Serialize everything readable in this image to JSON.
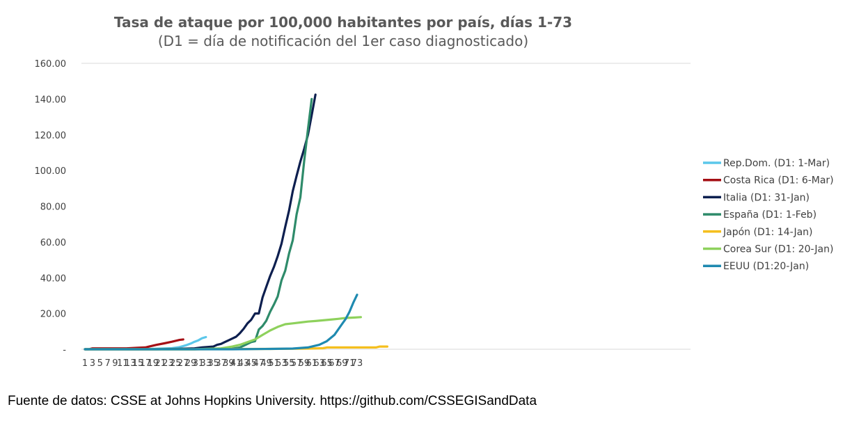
{
  "chart_data": {
    "type": "line",
    "title": "Tasa de ataque por 100,000 habitantes por país, días 1-73",
    "subtitle": "(D1 = día de notificación del 1er caso diagnosticado)",
    "xlabel": "",
    "ylabel": "",
    "ylim": [
      0,
      160
    ],
    "y_ticks": [
      "-",
      "20.00",
      "40.00",
      "60.00",
      "80.00",
      "100.00",
      "120.00",
      "140.00",
      "160.00"
    ],
    "x_ticks": [
      "1",
      "3",
      "5",
      "7",
      "9",
      "11",
      "13",
      "15",
      "17",
      "19",
      "21",
      "23",
      "25",
      "27",
      "29",
      "31",
      "33",
      "35",
      "37",
      "39",
      "41",
      "43",
      "45",
      "47",
      "49",
      "51",
      "53",
      "55",
      "57",
      "59",
      "61",
      "63",
      "65",
      "67",
      "69",
      "71",
      "73"
    ],
    "grid": "horizontal-top-only",
    "legend_position": "right",
    "series": [
      {
        "name": "Rep.Dom. (D1: 1-Mar)",
        "color": "#5bc7ea",
        "points": [
          [
            1,
            0
          ],
          [
            5,
            0
          ],
          [
            10,
            0
          ],
          [
            15,
            0
          ],
          [
            20,
            0.3
          ],
          [
            24,
            0.6
          ],
          [
            26,
            1.2
          ],
          [
            27,
            1.8
          ],
          [
            28,
            2.4
          ],
          [
            29,
            3.2
          ],
          [
            30,
            4.2
          ],
          [
            31,
            5
          ],
          [
            32,
            6.2
          ],
          [
            33,
            6.8
          ]
        ]
      },
      {
        "name": "Costa Rica (D1: 6-Mar)",
        "color": "#a50f15",
        "points": [
          [
            1,
            0
          ],
          [
            2,
            0
          ],
          [
            3,
            0.5
          ],
          [
            4,
            0.5
          ],
          [
            8,
            0.5
          ],
          [
            12,
            0.5
          ],
          [
            15,
            0.8
          ],
          [
            17,
            1
          ],
          [
            18,
            1.5
          ],
          [
            20,
            2.5
          ],
          [
            22,
            3.3
          ],
          [
            24,
            4.2
          ],
          [
            26,
            5.2
          ],
          [
            27,
            5.5
          ]
        ]
      },
      {
        "name": "Italia (D1: 31-Jan)",
        "color": "#0d1f4f",
        "points": [
          [
            1,
            0
          ],
          [
            20,
            0
          ],
          [
            25,
            0.2
          ],
          [
            30,
            0.5
          ],
          [
            32,
            1
          ],
          [
            35,
            1.5
          ],
          [
            36,
            2.5
          ],
          [
            37,
            3
          ],
          [
            38,
            4
          ],
          [
            39,
            5
          ],
          [
            40,
            6
          ],
          [
            41,
            7
          ],
          [
            42,
            9
          ],
          [
            43,
            11.5
          ],
          [
            44,
            14.5
          ],
          [
            45,
            16.5
          ],
          [
            46,
            20
          ],
          [
            47,
            20
          ],
          [
            48,
            29
          ],
          [
            49,
            35
          ],
          [
            50,
            41
          ],
          [
            51,
            46
          ],
          [
            52,
            52
          ],
          [
            53,
            59
          ],
          [
            54,
            68.5
          ],
          [
            55,
            77.5
          ],
          [
            56,
            88.5
          ],
          [
            57,
            97
          ],
          [
            58,
            105
          ],
          [
            59,
            112
          ],
          [
            60,
            120
          ],
          [
            61,
            131
          ],
          [
            62,
            142.5
          ]
        ]
      },
      {
        "name": "España (D1: 1-Feb)",
        "color": "#2e8b6a",
        "points": [
          [
            1,
            0
          ],
          [
            30,
            0
          ],
          [
            40,
            0.3
          ],
          [
            42,
            1
          ],
          [
            43,
            2
          ],
          [
            44,
            3
          ],
          [
            45,
            4
          ],
          [
            46,
            4.5
          ],
          [
            47,
            11
          ],
          [
            48,
            13
          ],
          [
            49,
            16
          ],
          [
            50,
            21
          ],
          [
            51,
            25
          ],
          [
            52,
            29.5
          ],
          [
            53,
            38.5
          ],
          [
            54,
            44
          ],
          [
            55,
            53.5
          ],
          [
            56,
            61
          ],
          [
            57,
            75.5
          ],
          [
            58,
            85
          ],
          [
            59,
            105
          ],
          [
            60,
            123
          ],
          [
            61,
            140
          ]
        ]
      },
      {
        "name": "Japón (D1: 14-Jan)",
        "color": "#f5bf1e",
        "points": [
          [
            1,
            0
          ],
          [
            30,
            0
          ],
          [
            50,
            0.2
          ],
          [
            60,
            0.4
          ],
          [
            64,
            0.6
          ],
          [
            65,
            1
          ],
          [
            70,
            1
          ],
          [
            75,
            1
          ],
          [
            78,
            1
          ],
          [
            79,
            1.5
          ],
          [
            81,
            1.5
          ]
        ]
      },
      {
        "name": "Corea Sur (D1: 20-Jan)",
        "color": "#8ed15c",
        "points": [
          [
            1,
            0
          ],
          [
            30,
            0
          ],
          [
            37,
            0.5
          ],
          [
            40,
            1.5
          ],
          [
            42,
            2.5
          ],
          [
            44,
            4
          ],
          [
            46,
            5.5
          ],
          [
            48,
            8
          ],
          [
            50,
            10.5
          ],
          [
            52,
            12.5
          ],
          [
            54,
            14
          ],
          [
            56,
            14.5
          ],
          [
            58,
            15
          ],
          [
            60,
            15.5
          ],
          [
            62,
            15.8
          ],
          [
            64,
            16.2
          ],
          [
            66,
            16.6
          ],
          [
            68,
            17
          ],
          [
            70,
            17.5
          ],
          [
            72,
            17.7
          ],
          [
            74,
            18
          ]
        ]
      },
      {
        "name": "EEUU (D1:20-Jan)",
        "color": "#1f8ab0",
        "points": [
          [
            1,
            0
          ],
          [
            40,
            0
          ],
          [
            50,
            0.2
          ],
          [
            56,
            0.4
          ],
          [
            60,
            1
          ],
          [
            63,
            2.5
          ],
          [
            65,
            4.5
          ],
          [
            67,
            8
          ],
          [
            69,
            14
          ],
          [
            70,
            17
          ],
          [
            71,
            21
          ],
          [
            72,
            26
          ],
          [
            73,
            30.5
          ]
        ]
      }
    ]
  },
  "source_text": "Fuente de datos: CSSE at Johns Hopkins University. https://github.com/CSSEGISandData"
}
